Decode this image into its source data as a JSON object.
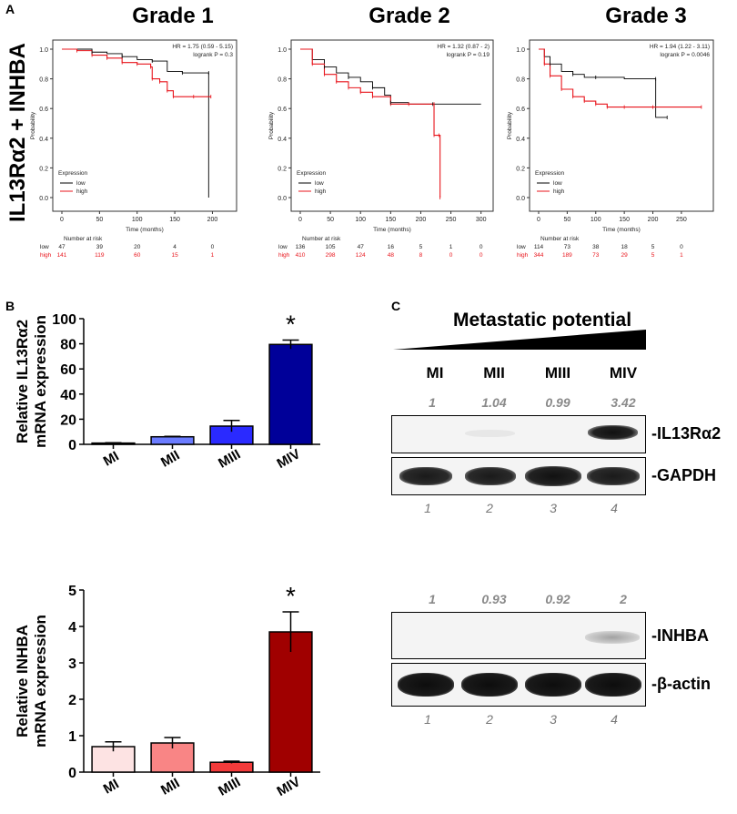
{
  "panel_a": {
    "letter": "A",
    "side_label": "IL13Rα2 + INHBA",
    "plots": [
      {
        "grade": "Grade 1",
        "hr_text": "HR = 1.75 (0.59 - 5.15)",
        "logrank_text": "logrank P = 0.3",
        "x_ticks": [
          "0",
          "50",
          "100",
          "150",
          "200"
        ],
        "x_max": 220,
        "risk_times": [
          "0",
          "50",
          "100",
          "150",
          "200"
        ],
        "risk_low": [
          "47",
          "39",
          "20",
          "4",
          "0"
        ],
        "risk_high": [
          "141",
          "119",
          "60",
          "15",
          "1"
        ],
        "low_curve": [
          [
            0,
            1.0
          ],
          [
            20,
            1.0
          ],
          [
            40,
            0.98
          ],
          [
            60,
            0.97
          ],
          [
            80,
            0.95
          ],
          [
            100,
            0.93
          ],
          [
            120,
            0.92
          ],
          [
            140,
            0.85
          ],
          [
            160,
            0.84
          ],
          [
            180,
            0.84
          ],
          [
            195,
            0.84
          ],
          [
            195,
            0.0
          ]
        ],
        "high_curve": [
          [
            0,
            1.0
          ],
          [
            20,
            0.99
          ],
          [
            40,
            0.96
          ],
          [
            60,
            0.94
          ],
          [
            80,
            0.91
          ],
          [
            100,
            0.9
          ],
          [
            118,
            0.88
          ],
          [
            120,
            0.8
          ],
          [
            130,
            0.78
          ],
          [
            140,
            0.72
          ],
          [
            148,
            0.68
          ],
          [
            175,
            0.68
          ],
          [
            198,
            0.68
          ]
        ]
      },
      {
        "grade": "Grade 2",
        "hr_text": "HR = 1.32 (0.87 - 2)",
        "logrank_text": "logrank P = 0.19",
        "x_ticks": [
          "0",
          "50",
          "100",
          "150",
          "200",
          "250",
          "300"
        ],
        "x_max": 305,
        "risk_times": [
          "0",
          "50",
          "100",
          "150",
          "200",
          "250",
          "300"
        ],
        "risk_low": [
          "136",
          "105",
          "47",
          "16",
          "5",
          "1",
          "0"
        ],
        "risk_high": [
          "410",
          "298",
          "124",
          "48",
          "8",
          "0",
          "0"
        ],
        "low_curve": [
          [
            0,
            1.0
          ],
          [
            20,
            0.93
          ],
          [
            40,
            0.88
          ],
          [
            60,
            0.84
          ],
          [
            80,
            0.81
          ],
          [
            100,
            0.78
          ],
          [
            120,
            0.74
          ],
          [
            140,
            0.69
          ],
          [
            150,
            0.64
          ],
          [
            180,
            0.63
          ],
          [
            220,
            0.63
          ],
          [
            300,
            0.63
          ]
        ],
        "high_curve": [
          [
            0,
            1.0
          ],
          [
            20,
            0.9
          ],
          [
            40,
            0.83
          ],
          [
            60,
            0.78
          ],
          [
            80,
            0.74
          ],
          [
            100,
            0.71
          ],
          [
            120,
            0.68
          ],
          [
            150,
            0.63
          ],
          [
            180,
            0.63
          ],
          [
            222,
            0.63
          ],
          [
            222,
            0.42
          ],
          [
            230,
            0.42
          ],
          [
            232,
            0.0
          ]
        ]
      },
      {
        "grade": "Grade 3",
        "hr_text": "HR = 1.94 (1.22 - 3.11)",
        "logrank_text": "logrank P = 0.0046",
        "x_ticks": [
          "0",
          "50",
          "100",
          "150",
          "200",
          "250"
        ],
        "x_max": 290,
        "risk_times": [
          "0",
          "50",
          "100",
          "150",
          "200",
          "250"
        ],
        "risk_low": [
          "114",
          "73",
          "38",
          "18",
          "5",
          "0"
        ],
        "risk_high": [
          "344",
          "189",
          "73",
          "29",
          "5",
          "1"
        ],
        "low_curve": [
          [
            0,
            1.0
          ],
          [
            10,
            0.95
          ],
          [
            20,
            0.9
          ],
          [
            40,
            0.85
          ],
          [
            60,
            0.83
          ],
          [
            80,
            0.81
          ],
          [
            100,
            0.81
          ],
          [
            150,
            0.8
          ],
          [
            205,
            0.8
          ],
          [
            205,
            0.54
          ],
          [
            225,
            0.54
          ]
        ],
        "high_curve": [
          [
            0,
            1.0
          ],
          [
            10,
            0.9
          ],
          [
            20,
            0.82
          ],
          [
            40,
            0.73
          ],
          [
            60,
            0.68
          ],
          [
            80,
            0.65
          ],
          [
            100,
            0.63
          ],
          [
            120,
            0.61
          ],
          [
            150,
            0.61
          ],
          [
            200,
            0.61
          ],
          [
            285,
            0.61
          ]
        ]
      }
    ],
    "y_ticks": [
      "0.0",
      "0.2",
      "0.4",
      "0.6",
      "0.8",
      "1.0"
    ],
    "y_label": "Probability",
    "x_label": "Time (months)",
    "legend_title": "Expression",
    "legend_low": "low",
    "legend_high": "high",
    "risk_title": "Number at risk",
    "risk_low_label": "low",
    "risk_high_label": "high",
    "low_color": "#000000",
    "high_color": "#e8141b"
  },
  "panel_b": {
    "letter": "B",
    "chart_data": [
      {
        "type": "bar",
        "categories": [
          "MI",
          "MII",
          "MIII",
          "MIV"
        ],
        "values": [
          1,
          6,
          14.5,
          79.5
        ],
        "errors": [
          0.3,
          0.3,
          4.5,
          3.5
        ],
        "colors": [
          "#000080",
          "#5c6ef0",
          "#1a1aff",
          "#00008b"
        ],
        "fills": [
          "#c0c8ff",
          "#6b7cff",
          "#2a2aff",
          "#000099"
        ],
        "ylim": [
          0,
          100
        ],
        "y_ticks": [
          "0",
          "20",
          "40",
          "60",
          "80",
          "100"
        ],
        "ylabel_line1": "Relative IL13Rα2",
        "ylabel_line2": "mRNA expression",
        "significance": "*"
      },
      {
        "type": "bar",
        "categories": [
          "MI",
          "MII",
          "MIII",
          "MIV"
        ],
        "values": [
          0.7,
          0.8,
          0.27,
          3.85
        ],
        "errors": [
          0.13,
          0.15,
          0.03,
          0.55
        ],
        "fills": [
          "#fde3e3",
          "#f98585",
          "#f23b3b",
          "#a00000"
        ],
        "ylim": [
          0,
          5
        ],
        "y_ticks": [
          "0",
          "1",
          "2",
          "3",
          "4",
          "5"
        ],
        "ylabel_line1": "Relative INHBA",
        "ylabel_line2": "mRNA expression",
        "significance": "*"
      }
    ]
  },
  "panel_c": {
    "letter": "C",
    "potential_label": "Metastatic potential",
    "lanes": [
      "MI",
      "MII",
      "MIII",
      "MIV"
    ],
    "il13_quant": [
      "1",
      "1.04",
      "0.99",
      "3.42"
    ],
    "inhba_quant": [
      "1",
      "0.93",
      "0.92",
      "2"
    ],
    "lane_numbers": [
      "1",
      "2",
      "3",
      "4"
    ],
    "blot_labels": {
      "il13": "-IL13Rα2",
      "gapdh": "-GAPDH",
      "inhba": "-INHBA",
      "actin": "-β-actin"
    }
  }
}
